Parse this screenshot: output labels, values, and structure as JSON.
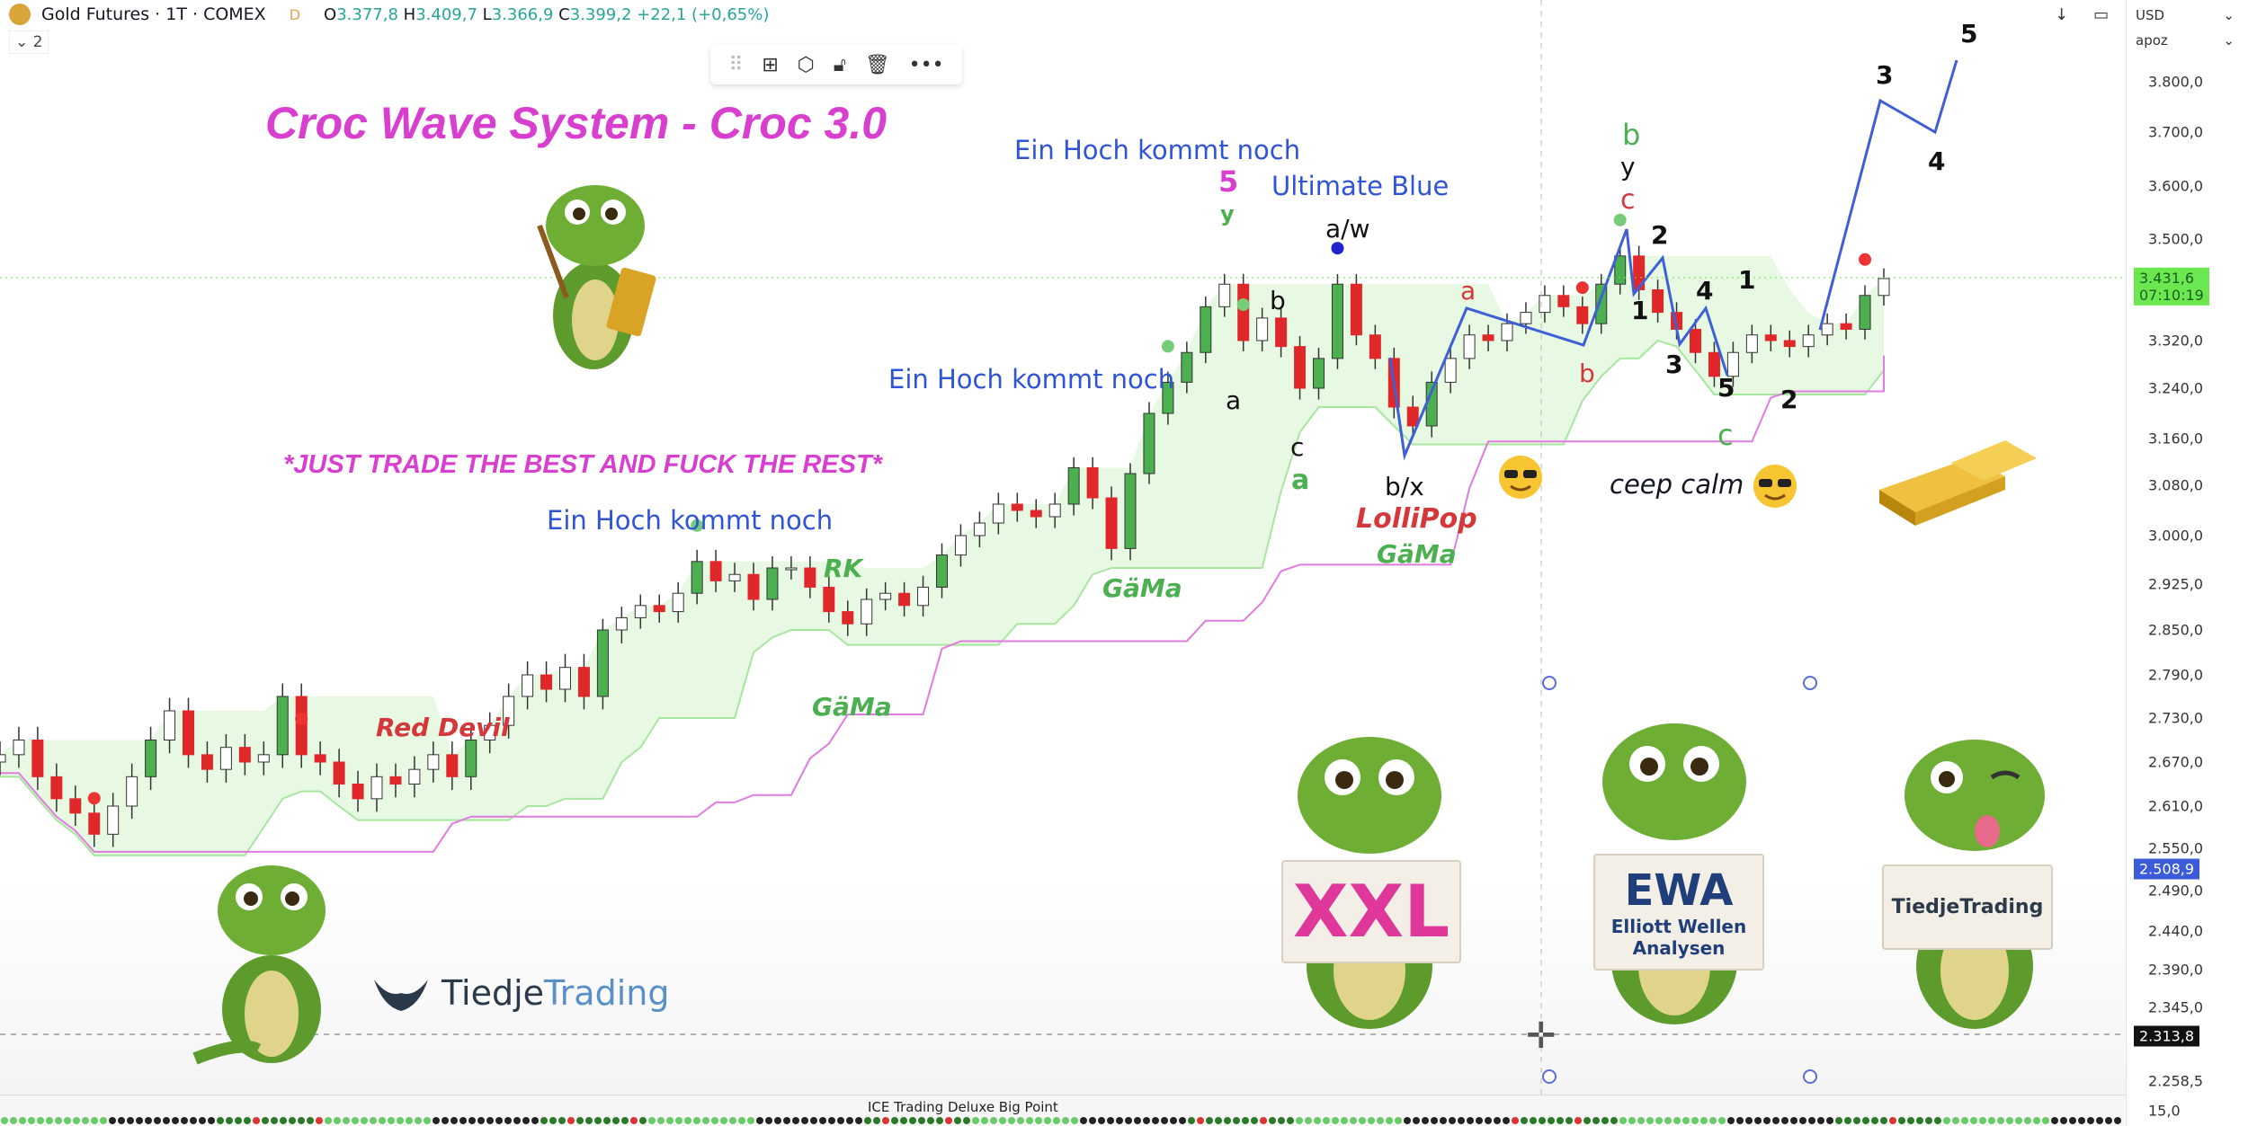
{
  "header": {
    "symbol": "Gold Futures · 1T · COMEX",
    "interval_badge": "D",
    "ohlc": {
      "o_label": "O",
      "o": "3.377,8",
      "h_label": "H",
      "h": "3.409,7",
      "l_label": "L",
      "l": "3.366,9",
      "c_label": "C",
      "c": "3.399,2",
      "change": "+22,1 (+0,65%)"
    },
    "legend_toggle": "⌄ 2"
  },
  "drawing_toolbar": {
    "icons": [
      "drag-handle-icon",
      "object-tree-add-icon",
      "settings-hex-icon",
      "unlock-icon",
      "trash-icon",
      "more-icon"
    ]
  },
  "axis": {
    "currency": "USD",
    "unit": "apoz",
    "ticks": [
      "3.800,0",
      "3.700,0",
      "3.600,0",
      "3.500,0",
      "3.320,0",
      "3.240,0",
      "3.160,0",
      "3.080,0",
      "3.000,0",
      "2.925,0",
      "2.850,0",
      "2.790,0",
      "2.730,0",
      "2.670,0",
      "2.610,0",
      "2.550,0",
      "2.490,0",
      "2.440,0",
      "2.390,0",
      "2.345,0",
      "2.258,5"
    ],
    "indicator_tick": "15,0",
    "last_price": {
      "value": "3.431,6",
      "countdown": "07:10:19",
      "color": "#6be84f"
    },
    "blue_label": {
      "value": "2.508,9",
      "color": "#3b5bdb"
    },
    "cursor_label": {
      "value": "2.313,8",
      "color": "#111111"
    }
  },
  "annotations": {
    "title": "Croc Wave System - Croc 3.0",
    "slogan": "*JUST TRADE THE BEST AND FUCK THE REST*",
    "ein_hoch_1": "Ein Hoch kommt noch",
    "ein_hoch_2": "Ein Hoch kommt noch",
    "ein_hoch_3": "Ein Hoch kommt noch",
    "ultimate_blue": "Ultimate Blue",
    "red_devil": "Red Devil",
    "rk": "RK",
    "gama_1": "GäMa",
    "gama_2": "GäMa",
    "gama_3": "GäMa",
    "lollipop": "LolliPop",
    "ceep_calm": "ceep calm",
    "waves": {
      "w5_top": "5",
      "y_top": "y",
      "aw": "a/w",
      "b1": "b",
      "a1": "a",
      "c1": "c",
      "a_green": "a",
      "bx": "b/x",
      "a_red": "a",
      "b_green": "b",
      "y2": "y",
      "c_red": "c",
      "n2a": "2",
      "n1a": "1",
      "b_red": "b",
      "n3a": "3",
      "n4a": "4",
      "n1b": "1",
      "n5a": "5",
      "c_green": "c",
      "n2b": "2",
      "n3b": "3",
      "n4b": "4",
      "n5b": "5"
    }
  },
  "signs": {
    "xxl": "XXL",
    "ewa": "EWA",
    "ewa_sub1": "Elliott Wellen",
    "ewa_sub2": "Analysen",
    "tiedje": "TiedjeTrading"
  },
  "brand": {
    "tiedje_a": "Tiedje",
    "tiedje_b": "Trading"
  },
  "indicator": {
    "title": "ICE Trading Deluxe Big Point"
  },
  "colors": {
    "up": "#ffffff",
    "down": "#e0282b",
    "bull": "#4caf50",
    "cloud": "#d8f5d0",
    "baseline": "#e07be0",
    "wave_line": "#3f5fd6"
  },
  "chart_data": {
    "type": "candlestick",
    "symbol": "Gold Futures",
    "y_ticks": [
      3800,
      3700,
      3600,
      3500,
      3320,
      3240,
      3160,
      3080,
      3000,
      2925,
      2850,
      2790,
      2730,
      2670,
      2610,
      2550,
      2490,
      2440,
      2390,
      2345,
      2258.5
    ],
    "closes": [
      2680,
      2700,
      2650,
      2620,
      2600,
      2570,
      2610,
      2650,
      2700,
      2740,
      2680,
      2660,
      2690,
      2670,
      2680,
      2760,
      2680,
      2670,
      2640,
      2620,
      2650,
      2640,
      2660,
      2680,
      2650,
      2700,
      2720,
      2760,
      2790,
      2770,
      2800,
      2760,
      2850,
      2870,
      2890,
      2880,
      2910,
      2960,
      2930,
      2940,
      2900,
      2950,
      2950,
      2920,
      2880,
      2860,
      2900,
      2910,
      2890,
      2920,
      2970,
      3000,
      3020,
      3050,
      3040,
      3030,
      3050,
      3110,
      3060,
      2980,
      3100,
      3200,
      3250,
      3300,
      3380,
      3420,
      3320,
      3360,
      3310,
      3240,
      3290,
      3420,
      3330,
      3290,
      3210,
      3180,
      3250,
      3290,
      3330,
      3320,
      3350,
      3370,
      3400,
      3380,
      3350,
      3420,
      3470,
      3410,
      3370,
      3340,
      3300,
      3260,
      3300,
      3330,
      3320,
      3310,
      3330,
      3350,
      3340,
      3400,
      3430
    ],
    "last_price": 3431.6
  }
}
